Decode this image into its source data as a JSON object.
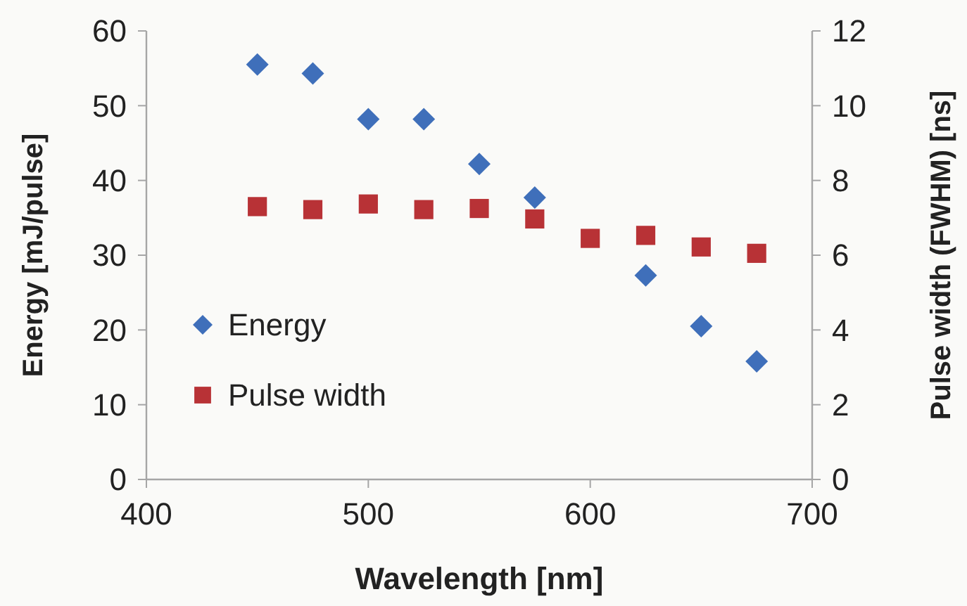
{
  "chart_data": {
    "type": "scatter",
    "xlabel": "Wavelength [nm]",
    "ylabel": "Energy [mJ/pulse]",
    "y2label": "Pulse width (FWHM) [ns]",
    "x": [
      450,
      475,
      500,
      525,
      550,
      575,
      600,
      625,
      650,
      675
    ],
    "xlim": [
      400,
      700
    ],
    "xticks": [
      400,
      500,
      600,
      700
    ],
    "ylim": [
      0,
      60
    ],
    "yticks": [
      0,
      10,
      20,
      30,
      40,
      50,
      60
    ],
    "y2lim": [
      0,
      12
    ],
    "y2ticks": [
      0,
      2,
      4,
      6,
      8,
      10,
      12
    ],
    "grid": false,
    "legend": "bottom left",
    "series": [
      {
        "name": "Energy",
        "color": "#3f6fba",
        "marker": "diamond",
        "values": [
          55.5,
          54.3,
          48.2,
          48.2,
          42.2,
          37.7,
          null,
          27.3,
          20.5,
          15.8
        ]
      },
      {
        "name": "Pulse width",
        "color": "#b83236",
        "marker": "square",
        "axis": "y2",
        "values": [
          7.3,
          7.22,
          7.37,
          7.22,
          7.25,
          6.97,
          6.45,
          6.53,
          6.22,
          6.05
        ]
      }
    ]
  }
}
